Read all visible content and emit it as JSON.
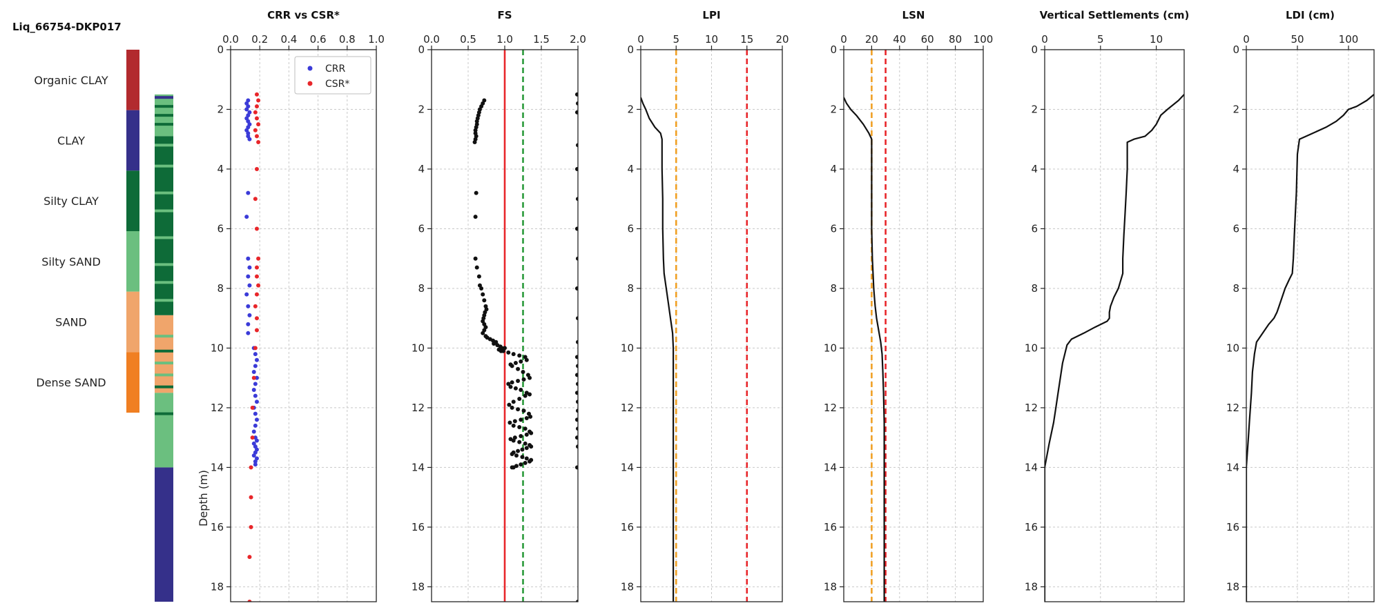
{
  "figure_title": "Liq_66754-DKP017",
  "legend_column": {
    "bands": [
      {
        "label": "Organic CLAY",
        "color": "#b22a2e",
        "top": 0.0,
        "bottom": 2.0
      },
      {
        "label": "CLAY",
        "color": "#35308a",
        "top": 2.0,
        "bottom": 4.0
      },
      {
        "label": "Silty CLAY",
        "color": "#0e6b38",
        "top": 4.0,
        "bottom": 6.0
      },
      {
        "label": "Silty SAND",
        "color": "#6bbf7f",
        "top": 6.0,
        "bottom": 8.0
      },
      {
        "label": "SAND",
        "color": "#f0a56b",
        "top": 8.0,
        "bottom": 10.0
      },
      {
        "label": "Dense SAND",
        "color": "#f07f22",
        "top": 10.0,
        "bottom": 12.0
      }
    ]
  },
  "soil_profile": {
    "layers": [
      {
        "top": 1.5,
        "bottom": 2.9,
        "type": "Silty SAND",
        "color": "#6bbf7f"
      },
      {
        "top": 2.9,
        "bottom": 8.9,
        "type": "Silty CLAY",
        "color": "#0e6b38"
      },
      {
        "top": 8.9,
        "bottom": 11.5,
        "type": "SAND",
        "color": "#f0a56b"
      },
      {
        "top": 11.5,
        "bottom": 14.0,
        "type": "Silty SAND",
        "color": "#6bbf7f"
      },
      {
        "top": 14.0,
        "bottom": 18.5,
        "type": "CLAY",
        "color": "#35308a"
      }
    ],
    "stripes": [
      {
        "depth": 1.6,
        "color": "#35308a"
      },
      {
        "depth": 1.9,
        "color": "#0e6b38"
      },
      {
        "depth": 2.2,
        "color": "#0e6b38"
      },
      {
        "depth": 2.5,
        "color": "#0e6b38"
      },
      {
        "depth": 3.2,
        "color": "#6bbf7f"
      },
      {
        "depth": 3.9,
        "color": "#6bbf7f"
      },
      {
        "depth": 4.8,
        "color": "#6bbf7f"
      },
      {
        "depth": 5.4,
        "color": "#6bbf7f"
      },
      {
        "depth": 6.3,
        "color": "#6bbf7f"
      },
      {
        "depth": 7.2,
        "color": "#6bbf7f"
      },
      {
        "depth": 7.8,
        "color": "#6bbf7f"
      },
      {
        "depth": 8.4,
        "color": "#6bbf7f"
      },
      {
        "depth": 9.6,
        "color": "#6bbf7f"
      },
      {
        "depth": 10.1,
        "color": "#0e6b38"
      },
      {
        "depth": 10.5,
        "color": "#6bbf7f"
      },
      {
        "depth": 10.9,
        "color": "#6bbf7f"
      },
      {
        "depth": 11.3,
        "color": "#0e6b38"
      },
      {
        "depth": 12.2,
        "color": "#0e6b38"
      }
    ]
  },
  "y_axis": {
    "label": "Depth (m)",
    "range": [
      0,
      18.5
    ],
    "ticks": [
      0,
      2,
      4,
      6,
      8,
      10,
      12,
      14,
      16,
      18
    ]
  },
  "chart_data": [
    {
      "type": "scatter",
      "title": "CRR vs CSR*",
      "xlim": [
        0,
        1.0
      ],
      "xticks": [
        0.0,
        0.2,
        0.4,
        0.6,
        0.8,
        1.0
      ],
      "xtick_labels": [
        "0.0",
        "0.2",
        "0.4",
        "0.6",
        "0.8",
        "1.0"
      ],
      "grid": true,
      "legend_position": "top-right",
      "series": [
        {
          "name": "CRR",
          "color": "#3b3bd8",
          "x": [
            0.12,
            0.11,
            0.12,
            0.11,
            0.13,
            0.12,
            0.11,
            0.12,
            0.13,
            0.12,
            0.11,
            0.12,
            0.12,
            0.13,
            0.12,
            0.11,
            0.12,
            0.13,
            0.12,
            0.13,
            0.11,
            0.12,
            0.13,
            0.12,
            0.12,
            0.16,
            0.17,
            0.18,
            0.17,
            0.16,
            0.18,
            0.17,
            0.16,
            0.17,
            0.18,
            0.16,
            0.17,
            0.18,
            0.17,
            0.16,
            0.17,
            0.18,
            0.16,
            0.17,
            0.18,
            0.17,
            0.16,
            0.18,
            0.17,
            0.17
          ],
          "y": [
            1.7,
            1.8,
            1.9,
            2.0,
            2.1,
            2.2,
            2.3,
            2.4,
            2.5,
            2.6,
            2.7,
            2.8,
            2.9,
            3.0,
            4.8,
            5.6,
            7.0,
            7.3,
            7.6,
            7.9,
            8.2,
            8.6,
            8.9,
            9.2,
            9.5,
            10.0,
            10.2,
            10.4,
            10.6,
            10.8,
            11.0,
            11.2,
            11.4,
            11.6,
            11.8,
            12.0,
            12.2,
            12.4,
            12.6,
            12.8,
            13.0,
            13.1,
            13.2,
            13.3,
            13.4,
            13.5,
            13.6,
            13.7,
            13.8,
            13.9
          ]
        },
        {
          "name": "CSR*",
          "color": "#e8262a",
          "x": [
            0.18,
            0.19,
            0.18,
            0.17,
            0.18,
            0.19,
            0.17,
            0.18,
            0.19,
            0.18,
            0.17,
            0.18,
            0.19,
            0.18,
            0.18,
            0.19,
            0.18,
            0.17,
            0.18,
            0.18,
            0.17,
            0.16,
            0.15,
            0.15,
            0.14,
            0.14,
            0.14,
            0.13,
            0.13
          ],
          "y": [
            1.5,
            1.7,
            1.9,
            2.1,
            2.3,
            2.5,
            2.7,
            2.9,
            3.1,
            4.0,
            5.0,
            6.0,
            7.0,
            7.3,
            7.6,
            7.9,
            8.2,
            8.6,
            9.0,
            9.4,
            10.0,
            11.0,
            12.0,
            13.0,
            14.0,
            15.0,
            16.0,
            17.0,
            18.5
          ]
        }
      ]
    },
    {
      "type": "scatter",
      "title": "FS",
      "xlim": [
        0,
        2.0
      ],
      "xticks": [
        0.0,
        0.5,
        1.0,
        1.5,
        2.0
      ],
      "xtick_labels": [
        "0.0",
        "0.5",
        "1.0",
        "1.5",
        "2.0"
      ],
      "grid": true,
      "reference_lines": [
        {
          "x": 1.0,
          "color": "#e8262a",
          "style": "solid"
        },
        {
          "x": 1.25,
          "color": "#2a9a3a",
          "style": "dashed"
        }
      ],
      "series": [
        {
          "name": "",
          "color": "#111111",
          "x": [
            0.72,
            0.7,
            0.68,
            0.66,
            0.65,
            0.64,
            0.63,
            0.62,
            0.62,
            0.61,
            0.6,
            0.6,
            0.61,
            0.6,
            0.59,
            0.61,
            0.6,
            0.6,
            0.62,
            0.65,
            0.66,
            0.68,
            0.7,
            0.72,
            0.74,
            0.75,
            0.73,
            0.72,
            0.71,
            0.7,
            0.72,
            0.74,
            0.72,
            0.7,
            0.74,
            0.76,
            0.8,
            0.84,
            0.88,
            0.85,
            0.9,
            0.94,
            0.96,
            0.92,
            0.95,
            1.0,
            0.98,
            1.05,
            1.12,
            1.2,
            1.28,
            1.3,
            1.22,
            1.15,
            1.08,
            1.1,
            1.18,
            1.25,
            1.32,
            1.34,
            1.26,
            1.18,
            1.1,
            1.05,
            1.08,
            1.15,
            1.22,
            1.3,
            1.34,
            1.28,
            1.2,
            1.12,
            1.06,
            1.1,
            1.18,
            1.26,
            1.33,
            1.35,
            1.3,
            1.22,
            1.14,
            1.07,
            1.12,
            1.2,
            1.28,
            1.34,
            1.36,
            1.3,
            1.22,
            1.14,
            1.08,
            1.12,
            1.2,
            1.28,
            1.34,
            1.36,
            1.3,
            1.24,
            1.18,
            1.12,
            1.1,
            1.16,
            1.24,
            1.3,
            1.36,
            1.34,
            1.28,
            1.22,
            1.16,
            1.12,
            1.1
          ],
          "y": [
            1.7,
            1.8,
            1.9,
            2.0,
            2.1,
            2.2,
            2.3,
            2.4,
            2.5,
            2.6,
            2.7,
            2.8,
            2.9,
            3.0,
            3.1,
            4.8,
            5.6,
            7.0,
            7.3,
            7.6,
            7.9,
            8.0,
            8.2,
            8.4,
            8.6,
            8.7,
            8.8,
            8.9,
            9.0,
            9.1,
            9.2,
            9.3,
            9.4,
            9.5,
            9.6,
            9.65,
            9.7,
            9.75,
            9.8,
            9.85,
            9.9,
            9.95,
            10.0,
            10.05,
            10.1,
            10.0,
            10.1,
            10.15,
            10.2,
            10.25,
            10.3,
            10.4,
            10.45,
            10.5,
            10.55,
            10.6,
            10.7,
            10.8,
            10.9,
            11.0,
            11.05,
            11.1,
            11.15,
            11.2,
            11.3,
            11.35,
            11.4,
            11.5,
            11.55,
            11.6,
            11.7,
            11.8,
            11.9,
            12.0,
            12.05,
            12.1,
            12.2,
            12.3,
            12.35,
            12.4,
            12.45,
            12.5,
            12.6,
            12.65,
            12.7,
            12.8,
            12.85,
            12.9,
            12.95,
            13.0,
            13.05,
            13.1,
            13.15,
            13.2,
            13.25,
            13.3,
            13.35,
            13.4,
            13.45,
            13.5,
            13.55,
            13.6,
            13.65,
            13.7,
            13.75,
            13.8,
            13.85,
            13.9,
            13.95,
            14.0,
            14.0
          ]
        },
        {
          "name": "",
          "color": "#111111",
          "x": [
            1.99,
            2.0,
            1.99,
            2.0,
            1.99,
            2.0,
            1.99,
            2.0,
            1.99,
            2.0,
            2.0,
            1.99,
            2.0,
            1.99,
            2.0,
            1.99,
            2.0,
            2.0,
            1.99,
            2.0,
            1.99,
            2.0,
            1.99,
            2.0
          ],
          "y": [
            1.5,
            1.8,
            2.1,
            3.2,
            4.0,
            5.0,
            6.0,
            7.0,
            8.0,
            9.0,
            9.8,
            10.3,
            10.6,
            10.9,
            11.2,
            11.5,
            11.8,
            12.1,
            12.4,
            12.7,
            13.0,
            13.3,
            14.0,
            18.5
          ]
        }
      ]
    },
    {
      "type": "line",
      "title": "LPI",
      "xlim": [
        0,
        20
      ],
      "xticks": [
        0,
        5,
        10,
        15,
        20
      ],
      "xtick_labels": [
        "0",
        "5",
        "10",
        "15",
        "20"
      ],
      "grid": true,
      "reference_lines": [
        {
          "x": 5,
          "color": "#f0a024",
          "style": "dashed"
        },
        {
          "x": 15,
          "color": "#e8262a",
          "style": "dashed"
        }
      ],
      "series": [
        {
          "name": "",
          "color": "#111111",
          "x": [
            0.0,
            0.3,
            0.7,
            1.2,
            2.0,
            2.8,
            3.0,
            3.0,
            3.1,
            3.1,
            3.2,
            3.3,
            3.6,
            3.9,
            4.2,
            4.5,
            4.6,
            4.6,
            4.6,
            4.6
          ],
          "y": [
            1.6,
            1.8,
            2.0,
            2.3,
            2.6,
            2.8,
            3.0,
            4.0,
            5.0,
            6.0,
            7.0,
            7.5,
            8.0,
            8.5,
            9.0,
            9.5,
            10.0,
            12.0,
            15.0,
            18.5
          ]
        }
      ]
    },
    {
      "type": "line",
      "title": "LSN",
      "xlim": [
        0,
        100
      ],
      "xticks": [
        0,
        20,
        40,
        60,
        80,
        100
      ],
      "xtick_labels": [
        "0",
        "20",
        "40",
        "60",
        "80",
        "100"
      ],
      "grid": true,
      "reference_lines": [
        {
          "x": 20,
          "color": "#f0a024",
          "style": "dashed"
        },
        {
          "x": 30,
          "color": "#e8262a",
          "style": "dashed"
        }
      ],
      "series": [
        {
          "name": "",
          "color": "#111111",
          "x": [
            0,
            2,
            5,
            9,
            14,
            18,
            20,
            20,
            20,
            20,
            20.5,
            21,
            21.5,
            22,
            22.5,
            23.5,
            25,
            26.5,
            27.5,
            28,
            28.5,
            29,
            29,
            29
          ],
          "y": [
            1.6,
            1.8,
            2.0,
            2.2,
            2.5,
            2.8,
            3.0,
            4.0,
            5.0,
            6.0,
            7.0,
            7.5,
            8.0,
            8.3,
            8.6,
            9.0,
            9.4,
            9.8,
            10.2,
            10.8,
            11.5,
            12.5,
            15.0,
            18.5
          ]
        }
      ]
    },
    {
      "type": "line",
      "title": "Vertical Settlements (cm)",
      "xlim": [
        0,
        12.5
      ],
      "xticks": [
        0,
        5,
        10
      ],
      "xtick_labels": [
        "0",
        "5",
        "10"
      ],
      "grid": true,
      "series": [
        {
          "name": "",
          "color": "#111111",
          "x": [
            12.5,
            12.0,
            11.0,
            10.4,
            10.0,
            9.6,
            9.0,
            8.0,
            7.4,
            7.4,
            7.3,
            7.2,
            7.1,
            7.0,
            7.0,
            6.6,
            6.2,
            5.9,
            5.8,
            5.8,
            5.6,
            4.5,
            3.5,
            2.4,
            2.0,
            1.6,
            1.2,
            1.0,
            0.8,
            0.4,
            0.0,
            0.0
          ],
          "y": [
            1.5,
            1.7,
            2.0,
            2.2,
            2.5,
            2.7,
            2.9,
            3.0,
            3.1,
            4.0,
            4.8,
            5.5,
            6.2,
            7.0,
            7.5,
            8.0,
            8.3,
            8.6,
            8.8,
            9.0,
            9.1,
            9.3,
            9.5,
            9.7,
            9.9,
            10.5,
            11.5,
            12.0,
            12.5,
            13.2,
            14.0,
            18.5
          ]
        }
      ]
    },
    {
      "type": "line",
      "title": "LDI (cm)",
      "xlim": [
        0,
        125
      ],
      "xticks": [
        0,
        50,
        100
      ],
      "xtick_labels": [
        "0",
        "50",
        "100"
      ],
      "grid": true,
      "series": [
        {
          "name": "",
          "color": "#111111",
          "x": [
            125,
            118,
            108,
            100,
            95,
            88,
            78,
            65,
            52,
            50,
            49,
            48,
            47,
            46,
            45,
            42,
            38,
            35,
            32,
            30,
            27,
            22,
            18,
            14,
            10,
            8,
            6,
            5,
            4,
            3,
            2,
            1,
            0,
            0
          ],
          "y": [
            1.5,
            1.7,
            1.9,
            2.0,
            2.2,
            2.4,
            2.6,
            2.8,
            3.0,
            3.5,
            4.8,
            5.5,
            6.2,
            7.0,
            7.5,
            7.7,
            8.0,
            8.3,
            8.6,
            8.8,
            9.0,
            9.2,
            9.4,
            9.6,
            9.8,
            10.2,
            10.8,
            11.5,
            12.0,
            12.5,
            13.0,
            13.5,
            14.0,
            18.5
          ]
        }
      ]
    }
  ]
}
